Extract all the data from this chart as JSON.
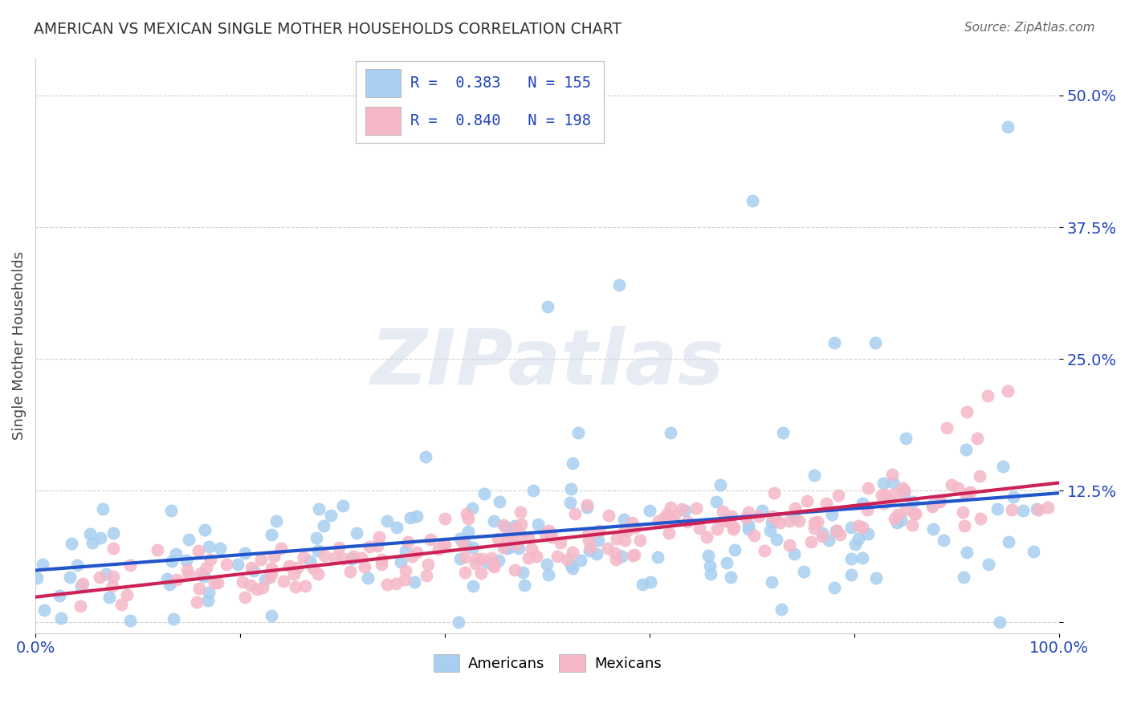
{
  "title": "AMERICAN VS MEXICAN SINGLE MOTHER HOUSEHOLDS CORRELATION CHART",
  "source": "Source: ZipAtlas.com",
  "ylabel": "Single Mother Households",
  "americans_R": 0.383,
  "americans_N": 155,
  "mexicans_R": 0.84,
  "mexicans_N": 198,
  "american_color": "#a8cff0",
  "mexican_color": "#f5b8c8",
  "american_line_color": "#2255cc",
  "mexican_line_color": "#cc2255",
  "watermark": "ZIPatlas",
  "background_color": "#ffffff",
  "grid_color": "#cccccc",
  "legend_text_color": "#2244bb",
  "xlim": [
    0.0,
    1.0
  ],
  "ylim": [
    -0.01,
    0.535
  ],
  "ytick_values": [
    0.0,
    0.125,
    0.25,
    0.375,
    0.5
  ],
  "ytick_labels": [
    "",
    "12.5%",
    "25.0%",
    "37.5%",
    "50.0%"
  ]
}
